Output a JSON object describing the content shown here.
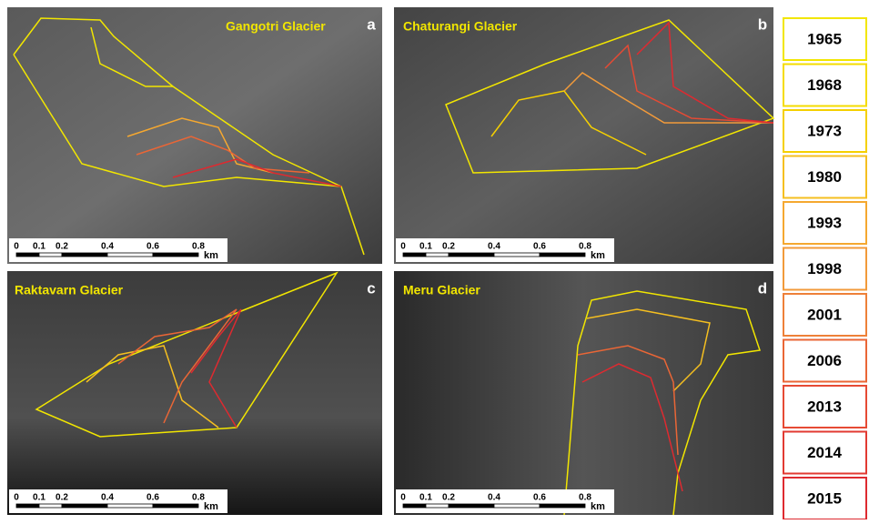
{
  "panels": [
    {
      "title": "Gangotri Glacier",
      "letter": "a",
      "scale": {
        "ticks": [
          "0",
          "0.1",
          "0.2",
          "0.4",
          "0.6",
          "0.8"
        ],
        "unit": "km"
      }
    },
    {
      "title": "Chaturangi Glacier",
      "letter": "b",
      "scale": {
        "ticks": [
          "0",
          "0.1",
          "0.2",
          "0.4",
          "0.6",
          "0.8"
        ],
        "unit": "km"
      }
    },
    {
      "title": "Raktavarn Glacier",
      "letter": "c",
      "scale": {
        "ticks": [
          "0",
          "0.1",
          "0.2",
          "0.4",
          "0.6",
          "0.8"
        ],
        "unit": "km"
      }
    },
    {
      "title": "Meru Glacier",
      "letter": "d",
      "scale": {
        "ticks": [
          "0",
          "0.1",
          "0.2",
          "0.4",
          "0.6",
          "0.8"
        ],
        "unit": "km"
      }
    }
  ],
  "legend": [
    {
      "year": "1965",
      "color": "#f2e600"
    },
    {
      "year": "1968",
      "color": "#f5dc00"
    },
    {
      "year": "1973",
      "color": "#f5d000"
    },
    {
      "year": "1980",
      "color": "#f5bf20"
    },
    {
      "year": "1993",
      "color": "#f5a830"
    },
    {
      "year": "1998",
      "color": "#f29a3a"
    },
    {
      "year": "2001",
      "color": "#ee8038"
    },
    {
      "year": "2006",
      "color": "#ea6636"
    },
    {
      "year": "2013",
      "color": "#e64a34"
    },
    {
      "year": "2014",
      "color": "#e23a32"
    },
    {
      "year": "2015",
      "color": "#de2a30"
    }
  ]
}
